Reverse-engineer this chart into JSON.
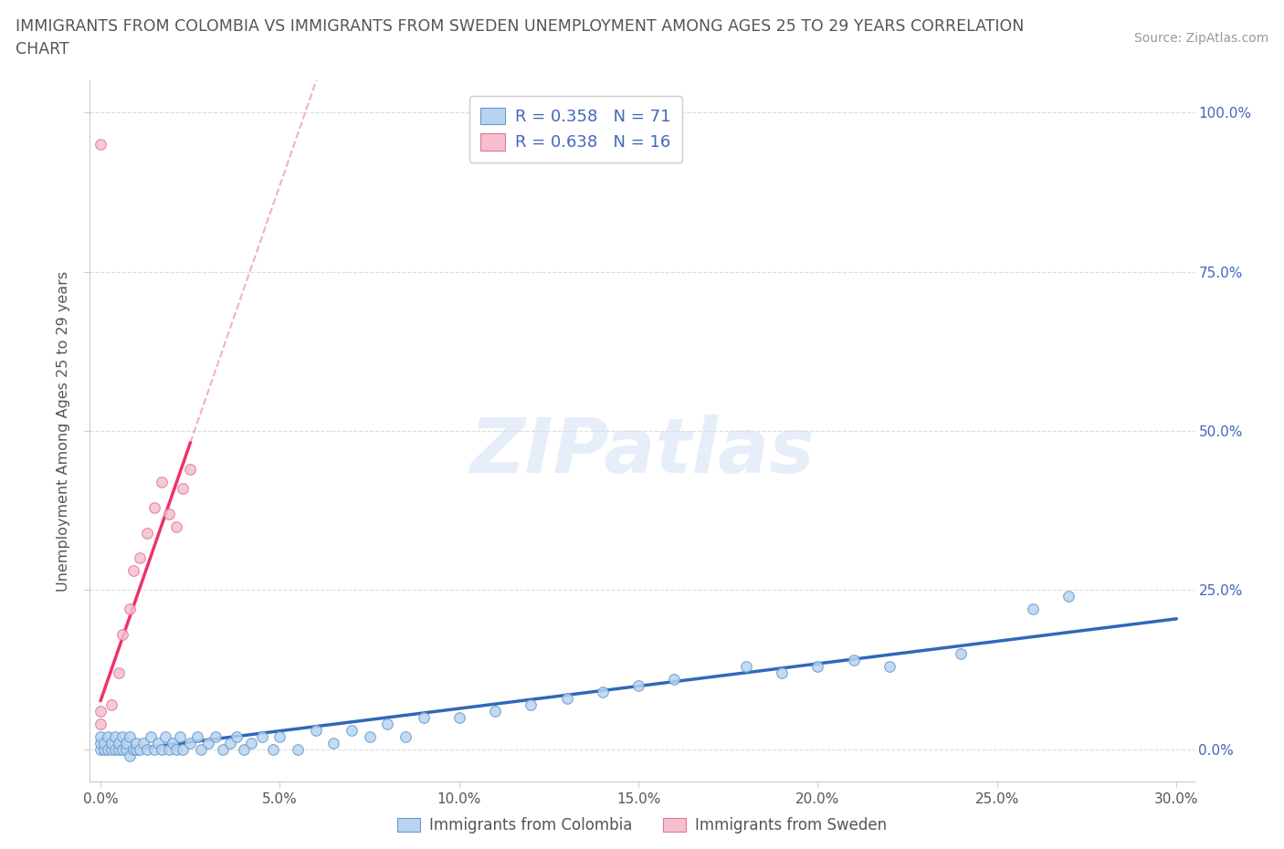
{
  "title_line1": "IMMIGRANTS FROM COLOMBIA VS IMMIGRANTS FROM SWEDEN UNEMPLOYMENT AMONG AGES 25 TO 29 YEARS CORRELATION",
  "title_line2": "CHART",
  "source": "Source: ZipAtlas.com",
  "ylabel": "Unemployment Among Ages 25 to 29 years",
  "xlim": [
    -0.003,
    0.305
  ],
  "ylim": [
    -0.05,
    1.05
  ],
  "xticks": [
    0.0,
    0.05,
    0.1,
    0.15,
    0.2,
    0.25,
    0.3
  ],
  "yticks": [
    0.0,
    0.25,
    0.5,
    0.75,
    1.0
  ],
  "xtick_labels": [
    "0.0%",
    "5.0%",
    "10.0%",
    "15.0%",
    "20.0%",
    "25.0%",
    "30.0%"
  ],
  "ytick_labels": [
    "0.0%",
    "25.0%",
    "50.0%",
    "75.0%",
    "100.0%"
  ],
  "colombia_face": "#b8d4f0",
  "colombia_edge": "#6699cc",
  "sweden_face": "#f5c0cc",
  "sweden_edge": "#dd7799",
  "colombia_line": "#3366bb",
  "sweden_line": "#ee3366",
  "colombia_R": 0.358,
  "colombia_N": 71,
  "sweden_R": 0.638,
  "sweden_N": 16,
  "watermark": "ZIPatlas",
  "watermark_color": "#ccdff5",
  "grid_color": "#dddddd",
  "title_color": "#555555",
  "axis_label_color": "#555555",
  "right_tick_color": "#4466bb",
  "legend_label_colombia": "Immigrants from Colombia",
  "legend_label_sweden": "Immigrants from Sweden",
  "legend_text_color": "#4466bb",
  "colombia_x": [
    0.0,
    0.0,
    0.0,
    0.001,
    0.001,
    0.002,
    0.002,
    0.003,
    0.003,
    0.004,
    0.004,
    0.005,
    0.005,
    0.006,
    0.006,
    0.007,
    0.007,
    0.008,
    0.008,
    0.009,
    0.01,
    0.01,
    0.011,
    0.012,
    0.013,
    0.014,
    0.015,
    0.016,
    0.017,
    0.018,
    0.019,
    0.02,
    0.021,
    0.022,
    0.023,
    0.025,
    0.027,
    0.028,
    0.03,
    0.032,
    0.034,
    0.036,
    0.038,
    0.04,
    0.042,
    0.045,
    0.048,
    0.05,
    0.055,
    0.06,
    0.065,
    0.07,
    0.075,
    0.08,
    0.085,
    0.09,
    0.1,
    0.11,
    0.12,
    0.13,
    0.14,
    0.15,
    0.16,
    0.18,
    0.19,
    0.2,
    0.21,
    0.22,
    0.24,
    0.26,
    0.27
  ],
  "colombia_y": [
    0.0,
    0.01,
    0.02,
    0.0,
    0.01,
    0.0,
    0.02,
    0.0,
    0.01,
    0.0,
    0.02,
    0.0,
    0.01,
    0.0,
    0.02,
    0.0,
    0.01,
    -0.01,
    0.02,
    0.0,
    0.0,
    0.01,
    0.0,
    0.01,
    0.0,
    0.02,
    0.0,
    0.01,
    0.0,
    0.02,
    0.0,
    0.01,
    0.0,
    0.02,
    0.0,
    0.01,
    0.02,
    0.0,
    0.01,
    0.02,
    0.0,
    0.01,
    0.02,
    0.0,
    0.01,
    0.02,
    0.0,
    0.02,
    0.0,
    0.03,
    0.01,
    0.03,
    0.02,
    0.04,
    0.02,
    0.05,
    0.05,
    0.06,
    0.07,
    0.08,
    0.09,
    0.1,
    0.11,
    0.13,
    0.12,
    0.13,
    0.14,
    0.13,
    0.15,
    0.22,
    0.24
  ],
  "sweden_x": [
    0.0,
    0.0,
    0.0,
    0.003,
    0.005,
    0.006,
    0.008,
    0.009,
    0.011,
    0.013,
    0.015,
    0.017,
    0.019,
    0.021,
    0.023,
    0.025
  ],
  "sweden_y": [
    0.95,
    0.06,
    0.04,
    0.07,
    0.12,
    0.18,
    0.22,
    0.28,
    0.3,
    0.34,
    0.38,
    0.42,
    0.37,
    0.35,
    0.41,
    0.44
  ],
  "sweden_outlier_idx": 0,
  "sweden_line_solid_xmax": 0.025,
  "sweden_line_dash_xmax": 0.12
}
